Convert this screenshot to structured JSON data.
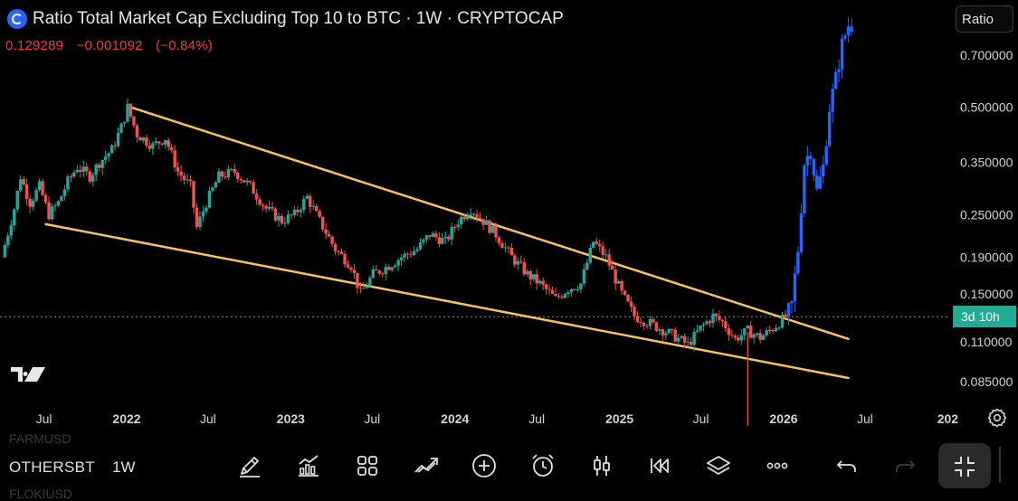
{
  "header": {
    "title": "Ratio Total Market Cap Excluding Top 10 to BTC · 1W · CRYPTOCAP",
    "price": "0.129289",
    "change": "−0.001092",
    "change_pct": "(−0.84%)"
  },
  "scale_button": {
    "label": "Ratio"
  },
  "countdown": {
    "label": "3d 10h"
  },
  "colors": {
    "up": "#26a69a",
    "down": "#ef5350",
    "projection": "#2962ff",
    "trendline": "#f6c35c",
    "background": "#000000"
  },
  "toolbar": {
    "watchlist_above": "FARMUSD",
    "symbol": "OTHERSBT",
    "watchlist_below": "FLOKIUSD",
    "timeframe": "1W",
    "icons": [
      "pencil-icon",
      "indicators-icon",
      "grid-icon",
      "drawings-icon",
      "add-icon",
      "alarm-icon",
      "candles-icon",
      "replay-icon",
      "layers-icon",
      "more-icon",
      "undo-icon",
      "redo-icon",
      "fullscreen-icon"
    ]
  },
  "chart_data": {
    "type": "line",
    "scale": "log",
    "y_ticks": [
      "0.700000",
      "0.500000",
      "0.350000",
      "0.250000",
      "0.190000",
      "0.150000",
      "0.110000",
      "0.085000"
    ],
    "y_tick_values": [
      0.7,
      0.5,
      0.35,
      0.25,
      0.19,
      0.15,
      0.11,
      0.085
    ],
    "x_ticks": [
      "Jul",
      "2022",
      "Jul",
      "2023",
      "Jul",
      "2024",
      "Jul",
      "2025",
      "Jul",
      "2026",
      "Jul",
      "202"
    ],
    "x_tick_dates": [
      "2021-07-01",
      "2022-01-01",
      "2022-07-01",
      "2023-01-01",
      "2023-07-01",
      "2024-01-01",
      "2024-07-01",
      "2025-01-01",
      "2025-07-01",
      "2026-01-01",
      "2026-07-01",
      "2027-01-01"
    ],
    "current_price": 0.129289,
    "series": [
      {
        "values_points": [
          [
            "2021-04-05",
            0.19
          ],
          [
            "2021-05-03",
            0.26
          ],
          [
            "2021-05-17",
            0.32
          ],
          [
            "2021-06-07",
            0.27
          ],
          [
            "2021-06-28",
            0.3
          ],
          [
            "2021-07-19",
            0.25
          ],
          [
            "2021-08-09",
            0.27
          ],
          [
            "2021-08-30",
            0.31
          ],
          [
            "2021-09-20",
            0.34
          ],
          [
            "2021-10-18",
            0.32
          ],
          [
            "2021-11-08",
            0.35
          ],
          [
            "2021-12-06",
            0.38
          ],
          [
            "2021-12-27",
            0.44
          ],
          [
            "2022-01-10",
            0.5
          ],
          [
            "2022-01-31",
            0.42
          ],
          [
            "2022-03-07",
            0.39
          ],
          [
            "2022-04-04",
            0.41
          ],
          [
            "2022-05-02",
            0.33
          ],
          [
            "2022-05-30",
            0.3
          ],
          [
            "2022-06-13",
            0.23
          ],
          [
            "2022-07-04",
            0.27
          ],
          [
            "2022-08-01",
            0.32
          ],
          [
            "2022-09-05",
            0.33
          ],
          [
            "2022-10-10",
            0.3
          ],
          [
            "2022-11-14",
            0.26
          ],
          [
            "2022-12-19",
            0.24
          ],
          [
            "2023-01-16",
            0.25
          ],
          [
            "2023-02-13",
            0.28
          ],
          [
            "2023-03-13",
            0.24
          ],
          [
            "2023-04-17",
            0.2
          ],
          [
            "2023-05-22",
            0.18
          ],
          [
            "2023-06-12",
            0.15
          ],
          [
            "2023-07-10",
            0.17
          ],
          [
            "2023-08-14",
            0.18
          ],
          [
            "2023-09-11",
            0.19
          ],
          [
            "2023-10-16",
            0.2
          ],
          [
            "2023-11-13",
            0.22
          ],
          [
            "2023-12-18",
            0.21
          ],
          [
            "2024-01-15",
            0.24
          ],
          [
            "2024-02-12",
            0.26
          ],
          [
            "2024-03-11",
            0.24
          ],
          [
            "2024-04-08",
            0.22
          ],
          [
            "2024-05-13",
            0.19
          ],
          [
            "2024-06-17",
            0.17
          ],
          [
            "2024-07-15",
            0.16
          ],
          [
            "2024-08-19",
            0.145
          ],
          [
            "2024-09-16",
            0.155
          ],
          [
            "2024-10-14",
            0.16
          ],
          [
            "2024-11-11",
            0.21
          ],
          [
            "2024-12-09",
            0.19
          ],
          [
            "2025-01-13",
            0.15
          ],
          [
            "2025-02-10",
            0.13
          ],
          [
            "2025-03-10",
            0.125
          ],
          [
            "2025-04-07",
            0.12
          ],
          [
            "2025-05-05",
            0.115
          ],
          [
            "2025-06-09",
            0.108
          ],
          [
            "2025-07-07",
            0.12
          ],
          [
            "2025-08-04",
            0.13
          ],
          [
            "2025-08-25",
            0.125
          ],
          [
            "2025-09-22",
            0.112
          ],
          [
            "2025-10-20",
            0.118
          ],
          [
            "2025-11-17",
            0.113
          ],
          [
            "2025-12-15",
            0.12
          ],
          [
            "2026-01-12",
            0.129289
          ]
        ]
      },
      {
        "values_points": [
          [
            "2026-01-12",
            0.129
          ],
          [
            "2026-01-26",
            0.14
          ],
          [
            "2026-02-09",
            0.2
          ],
          [
            "2026-02-23",
            0.35
          ],
          [
            "2026-03-09",
            0.38
          ],
          [
            "2026-03-23",
            0.29
          ],
          [
            "2026-04-06",
            0.34
          ],
          [
            "2026-04-20",
            0.5
          ],
          [
            "2026-05-04",
            0.6
          ],
          [
            "2026-05-18",
            0.75
          ],
          [
            "2026-06-01",
            0.85
          ]
        ]
      }
    ],
    "trendlines": [
      {
        "points": [
          [
            "2022-01-10",
            0.5
          ],
          [
            "2026-05-25",
            0.112
          ]
        ]
      },
      {
        "points": [
          [
            "2021-07-05",
            0.235
          ],
          [
            "2026-05-25",
            0.087
          ]
        ]
      }
    ]
  }
}
